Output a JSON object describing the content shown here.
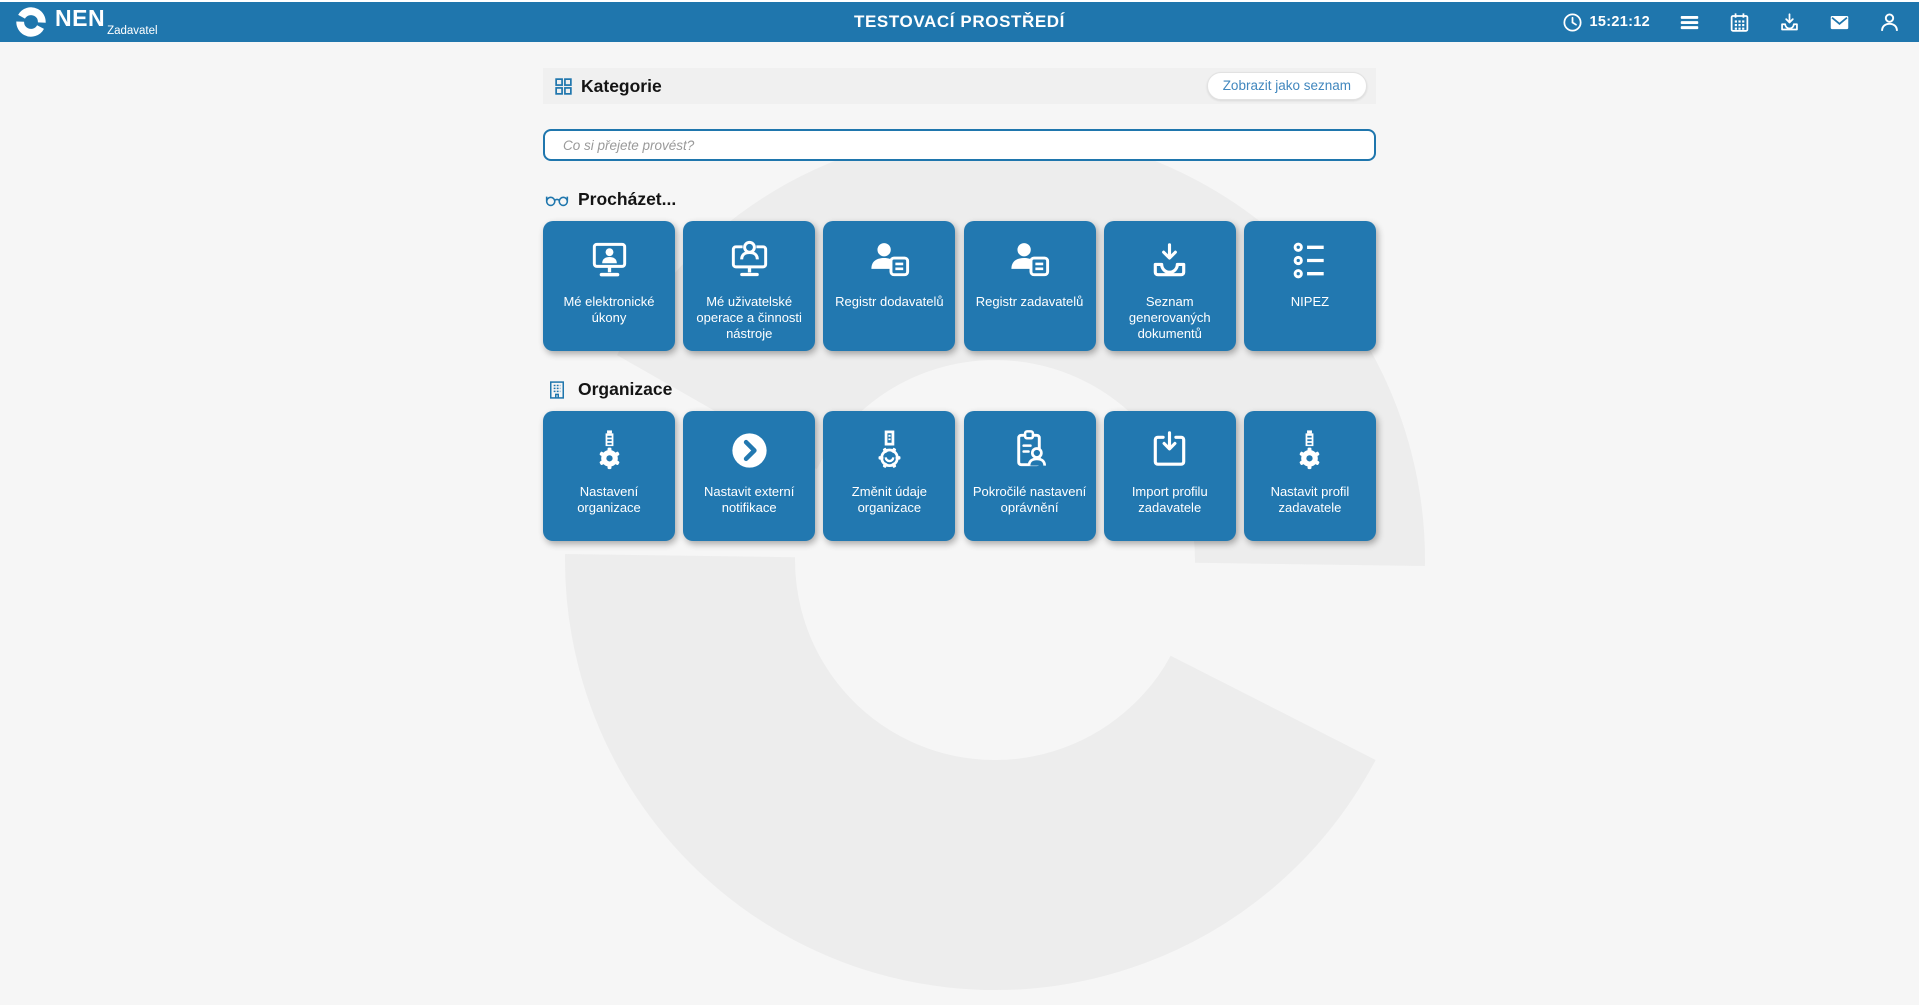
{
  "header": {
    "brand": "NEN",
    "brand_subtitle": "Zadavatel",
    "environment_title": "TESTOVACÍ PROSTŘEDÍ",
    "clock_time": "15:21:12"
  },
  "kategorie": {
    "title": "Kategorie",
    "view_list_button": "Zobrazit jako seznam"
  },
  "search": {
    "placeholder": "Co si přejete provést?",
    "value": ""
  },
  "sections": [
    {
      "title": "Procházet...",
      "icon": "glasses-icon",
      "tiles": [
        {
          "label": "Mé elektronické úkony",
          "icon": "monitor-user-icon"
        },
        {
          "label": "Mé uživatelské operace a činnosti nástroje",
          "icon": "monitor-user-alt-icon"
        },
        {
          "label": "Registr dodavatelů",
          "icon": "user-document-icon"
        },
        {
          "label": "Registr zadavatelů",
          "icon": "user-document-icon"
        },
        {
          "label": "Seznam generovaných dokumentů",
          "icon": "tray-download-icon"
        },
        {
          "label": "NIPEZ",
          "icon": "list-icon"
        }
      ]
    },
    {
      "title": "Organizace",
      "icon": "building-icon",
      "tiles": [
        {
          "label": "Nastavení organizace",
          "icon": "gear-building-icon"
        },
        {
          "label": "Nastavit externí notifikace",
          "icon": "chevron-circle-icon"
        },
        {
          "label": "Změnit údaje organizace",
          "icon": "gear-building-outline-icon"
        },
        {
          "label": "Pokročilé nastavení oprávnění",
          "icon": "clipboard-user-icon"
        },
        {
          "label": "Import profilu zadavatele",
          "icon": "import-box-icon"
        },
        {
          "label": "Nastavit profil zadavatele",
          "icon": "gear-building-icon"
        }
      ]
    }
  ],
  "colors": {
    "header_bg": "#1F76AD",
    "tile_bg": "#2278B0",
    "accent_blue": "#1F76AD",
    "page_bg": "#F6F6F6",
    "category_bar_bg": "#F0F0F0",
    "link_blue": "#4187BE",
    "watermark": "#EDEDED"
  }
}
